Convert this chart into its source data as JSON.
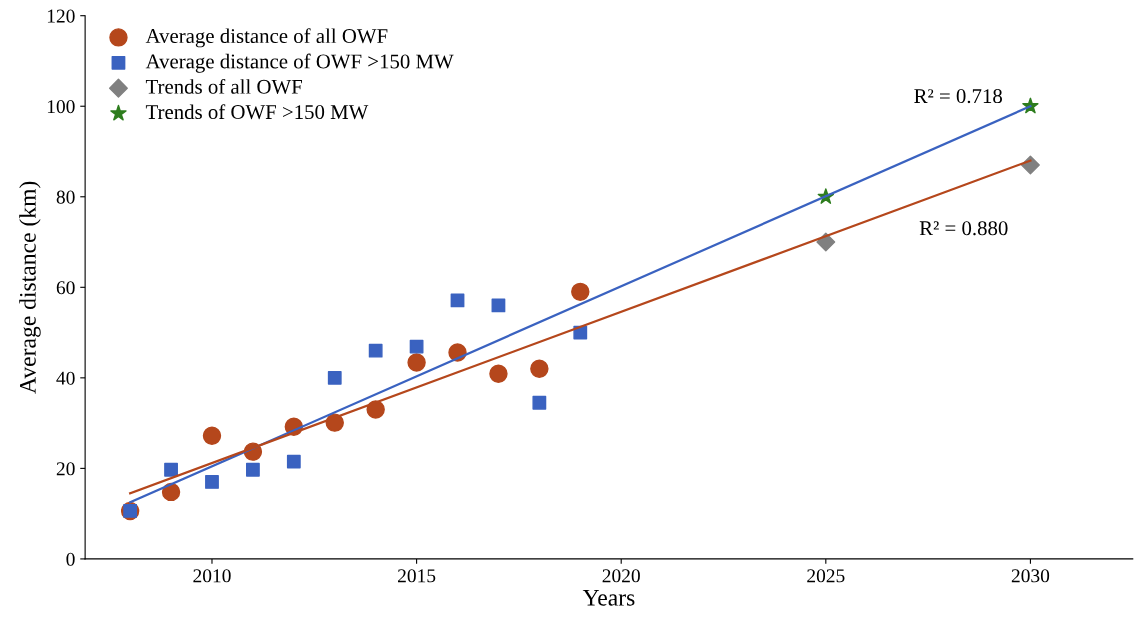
{
  "chart_data": {
    "type": "scatter",
    "xlabel": "Years",
    "ylabel": "Average distance (km)",
    "xlim": [
      2006.9,
      2032.5
    ],
    "xticks": [
      2010,
      2015,
      2020,
      2025,
      2030
    ],
    "ylim": [
      0,
      120
    ],
    "yticks": [
      0,
      20,
      40,
      60,
      80,
      100,
      120
    ],
    "grid": false,
    "legend": "top left",
    "series": [
      {
        "name": "Average distance of all OWF",
        "color": "#b5471c",
        "marker": "circle",
        "x": [
          2008,
          2009,
          2010,
          2011,
          2012,
          2013,
          2014,
          2015,
          2016,
          2017,
          2018,
          2019
        ],
        "values": [
          10.6,
          14.8,
          27.2,
          23.7,
          29.2,
          30.1,
          33,
          43.4,
          45.6,
          40.9,
          42,
          59
        ]
      },
      {
        "name": "Average distance of OWF >150 MW",
        "color": "#3a62c0",
        "marker": "square",
        "x": [
          2008,
          2009,
          2010,
          2011,
          2012,
          2013,
          2014,
          2015,
          2016,
          2017,
          2018,
          2019
        ],
        "values": [
          10.6,
          19.7,
          17,
          19.7,
          21.5,
          40,
          46,
          46.9,
          57.1,
          56,
          34.5,
          50
        ]
      },
      {
        "name": "Trends of all OWF",
        "color": "#808080",
        "marker": "diamond",
        "x": [
          2025,
          2030
        ],
        "values": [
          70,
          87
        ]
      },
      {
        "name": "Trends of OWF >150 MW",
        "color": "#2e7d1e",
        "marker": "star",
        "x": [
          2025,
          2030
        ],
        "values": [
          80,
          100
        ]
      },
      {
        "type": "line",
        "color": "#3a62c0",
        "x": [
          2008,
          2030
        ],
        "values": [
          12.5,
          100
        ]
      },
      {
        "type": "line",
        "color": "#b5471c",
        "x": [
          2008,
          2030
        ],
        "values": [
          14.5,
          88
        ]
      }
    ],
    "annotations": [
      "R² = 0.718",
      "R² = 0.880"
    ]
  }
}
